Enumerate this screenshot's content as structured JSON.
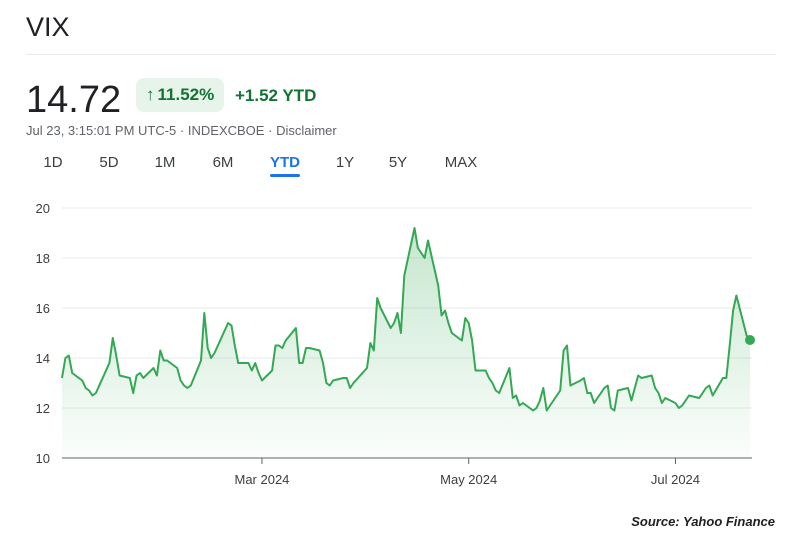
{
  "header": {
    "title": "VIX"
  },
  "quote": {
    "price": "14.72",
    "change_percent": "11.52%",
    "change_arrow": "↑",
    "ytd_change": "+1.52 YTD",
    "timestamp": "Jul 23, 3:15:01 PM UTC-5",
    "exchange": "INDEXCBOE",
    "disclaimer": "Disclaimer",
    "separator": "·"
  },
  "range_tabs": [
    {
      "label": "1D"
    },
    {
      "label": "5D"
    },
    {
      "label": "1M"
    },
    {
      "label": "6M"
    },
    {
      "label": "YTD",
      "active": true
    },
    {
      "label": "1Y"
    },
    {
      "label": "5Y"
    },
    {
      "label": "MAX"
    }
  ],
  "colors": {
    "line": "#34a853",
    "fill_top": "#34a853",
    "positive_text": "#137333",
    "badge_bg": "#e6f4ea",
    "active_tab": "#1a73e8"
  },
  "chart_data": {
    "type": "area",
    "title": "",
    "xlabel": "",
    "ylabel": "",
    "ylim": [
      10,
      20
    ],
    "y_ticks": [
      "10",
      "12",
      "14",
      "16",
      "18",
      "20"
    ],
    "x_ticks": [
      {
        "label": "Mar 2024",
        "date": "2024-03-01"
      },
      {
        "label": "May 2024",
        "date": "2024-05-01"
      },
      {
        "label": "Jul 2024",
        "date": "2024-07-01"
      }
    ],
    "x_range": [
      "2024-01-02",
      "2024-07-23"
    ],
    "grid": "horizontal",
    "series": [
      {
        "values": [
          [
            "2024-01-02",
            13.2
          ],
          [
            "2024-01-03",
            14.0
          ],
          [
            "2024-01-04",
            14.1
          ],
          [
            "2024-01-05",
            13.4
          ],
          [
            "2024-01-08",
            13.1
          ],
          [
            "2024-01-09",
            12.8
          ],
          [
            "2024-01-10",
            12.7
          ],
          [
            "2024-01-11",
            12.5
          ],
          [
            "2024-01-12",
            12.6
          ],
          [
            "2024-01-16",
            13.8
          ],
          [
            "2024-01-17",
            14.8
          ],
          [
            "2024-01-18",
            14.1
          ],
          [
            "2024-01-19",
            13.3
          ],
          [
            "2024-01-22",
            13.2
          ],
          [
            "2024-01-23",
            12.6
          ],
          [
            "2024-01-24",
            13.3
          ],
          [
            "2024-01-25",
            13.4
          ],
          [
            "2024-01-26",
            13.2
          ],
          [
            "2024-01-29",
            13.6
          ],
          [
            "2024-01-30",
            13.3
          ],
          [
            "2024-01-31",
            14.3
          ],
          [
            "2024-02-01",
            13.9
          ],
          [
            "2024-02-02",
            13.9
          ],
          [
            "2024-02-05",
            13.6
          ],
          [
            "2024-02-06",
            13.1
          ],
          [
            "2024-02-07",
            12.9
          ],
          [
            "2024-02-08",
            12.8
          ],
          [
            "2024-02-09",
            12.9
          ],
          [
            "2024-02-12",
            13.9
          ],
          [
            "2024-02-13",
            15.8
          ],
          [
            "2024-02-14",
            14.4
          ],
          [
            "2024-02-15",
            14.0
          ],
          [
            "2024-02-16",
            14.2
          ],
          [
            "2024-02-20",
            15.4
          ],
          [
            "2024-02-21",
            15.3
          ],
          [
            "2024-02-22",
            14.5
          ],
          [
            "2024-02-23",
            13.8
          ],
          [
            "2024-02-26",
            13.8
          ],
          [
            "2024-02-27",
            13.5
          ],
          [
            "2024-02-28",
            13.8
          ],
          [
            "2024-02-29",
            13.4
          ],
          [
            "2024-03-01",
            13.1
          ],
          [
            "2024-03-04",
            13.5
          ],
          [
            "2024-03-05",
            14.5
          ],
          [
            "2024-03-06",
            14.5
          ],
          [
            "2024-03-07",
            14.4
          ],
          [
            "2024-03-08",
            14.7
          ],
          [
            "2024-03-11",
            15.2
          ],
          [
            "2024-03-12",
            13.8
          ],
          [
            "2024-03-13",
            13.8
          ],
          [
            "2024-03-14",
            14.4
          ],
          [
            "2024-03-15",
            14.4
          ],
          [
            "2024-03-18",
            14.3
          ],
          [
            "2024-03-19",
            13.8
          ],
          [
            "2024-03-20",
            13.0
          ],
          [
            "2024-03-21",
            12.9
          ],
          [
            "2024-03-22",
            13.1
          ],
          [
            "2024-03-25",
            13.2
          ],
          [
            "2024-03-26",
            13.2
          ],
          [
            "2024-03-27",
            12.8
          ],
          [
            "2024-03-28",
            13.0
          ],
          [
            "2024-04-01",
            13.6
          ],
          [
            "2024-04-02",
            14.6
          ],
          [
            "2024-04-03",
            14.3
          ],
          [
            "2024-04-04",
            16.4
          ],
          [
            "2024-04-05",
            16.0
          ],
          [
            "2024-04-08",
            15.2
          ],
          [
            "2024-04-09",
            15.4
          ],
          [
            "2024-04-10",
            15.8
          ],
          [
            "2024-04-11",
            15.0
          ],
          [
            "2024-04-12",
            17.3
          ],
          [
            "2024-04-15",
            19.2
          ],
          [
            "2024-04-16",
            18.4
          ],
          [
            "2024-04-17",
            18.2
          ],
          [
            "2024-04-18",
            18.0
          ],
          [
            "2024-04-19",
            18.7
          ],
          [
            "2024-04-22",
            16.9
          ],
          [
            "2024-04-23",
            15.7
          ],
          [
            "2024-04-24",
            15.9
          ],
          [
            "2024-04-25",
            15.4
          ],
          [
            "2024-04-26",
            15.0
          ],
          [
            "2024-04-29",
            14.7
          ],
          [
            "2024-04-30",
            15.6
          ],
          [
            "2024-05-01",
            15.4
          ],
          [
            "2024-05-02",
            14.7
          ],
          [
            "2024-05-03",
            13.5
          ],
          [
            "2024-05-06",
            13.5
          ],
          [
            "2024-05-07",
            13.2
          ],
          [
            "2024-05-08",
            13.0
          ],
          [
            "2024-05-09",
            12.7
          ],
          [
            "2024-05-10",
            12.6
          ],
          [
            "2024-05-13",
            13.6
          ],
          [
            "2024-05-14",
            12.4
          ],
          [
            "2024-05-15",
            12.5
          ],
          [
            "2024-05-16",
            12.1
          ],
          [
            "2024-05-17",
            12.2
          ],
          [
            "2024-05-20",
            11.9
          ],
          [
            "2024-05-21",
            12.0
          ],
          [
            "2024-05-22",
            12.3
          ],
          [
            "2024-05-23",
            12.8
          ],
          [
            "2024-05-24",
            11.9
          ],
          [
            "2024-05-28",
            12.7
          ],
          [
            "2024-05-29",
            14.3
          ],
          [
            "2024-05-30",
            14.5
          ],
          [
            "2024-05-31",
            12.9
          ],
          [
            "2024-06-03",
            13.1
          ],
          [
            "2024-06-04",
            13.2
          ],
          [
            "2024-06-05",
            12.6
          ],
          [
            "2024-06-06",
            12.6
          ],
          [
            "2024-06-07",
            12.2
          ],
          [
            "2024-06-10",
            12.8
          ],
          [
            "2024-06-11",
            12.9
          ],
          [
            "2024-06-12",
            12.0
          ],
          [
            "2024-06-13",
            11.9
          ],
          [
            "2024-06-14",
            12.7
          ],
          [
            "2024-06-17",
            12.8
          ],
          [
            "2024-06-18",
            12.3
          ],
          [
            "2024-06-20",
            13.3
          ],
          [
            "2024-06-21",
            13.2
          ],
          [
            "2024-06-24",
            13.3
          ],
          [
            "2024-06-25",
            12.8
          ],
          [
            "2024-06-26",
            12.6
          ],
          [
            "2024-06-27",
            12.2
          ],
          [
            "2024-06-28",
            12.4
          ],
          [
            "2024-07-01",
            12.2
          ],
          [
            "2024-07-02",
            12.0
          ],
          [
            "2024-07-03",
            12.1
          ],
          [
            "2024-07-05",
            12.5
          ],
          [
            "2024-07-08",
            12.4
          ],
          [
            "2024-07-09",
            12.6
          ],
          [
            "2024-07-10",
            12.8
          ],
          [
            "2024-07-11",
            12.9
          ],
          [
            "2024-07-12",
            12.5
          ],
          [
            "2024-07-15",
            13.2
          ],
          [
            "2024-07-16",
            13.2
          ],
          [
            "2024-07-17",
            14.5
          ],
          [
            "2024-07-18",
            15.9
          ],
          [
            "2024-07-19",
            16.5
          ],
          [
            "2024-07-22",
            14.9
          ],
          [
            "2024-07-23",
            14.72
          ]
        ]
      }
    ]
  },
  "source": "Source: Yahoo Finance"
}
